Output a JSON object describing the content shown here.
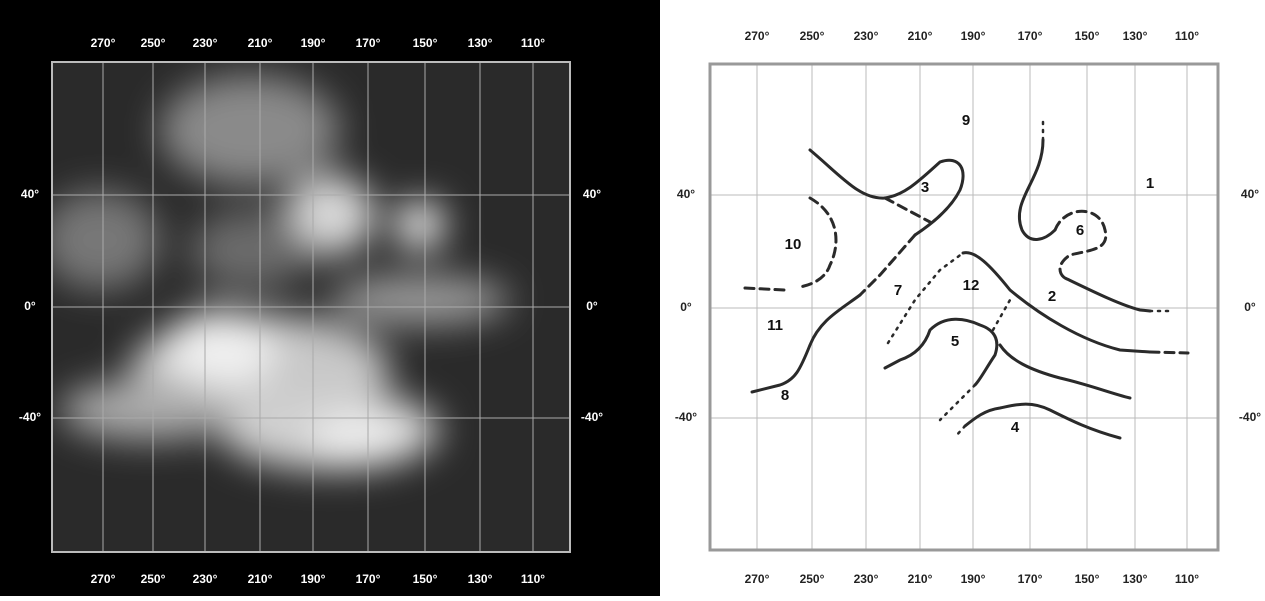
{
  "left_panel": {
    "longitudes_top": [
      "270°",
      "250°",
      "230°",
      "210°",
      "190°",
      "170°",
      "150°",
      "130°",
      "110°"
    ],
    "longitudes_bottom": [
      "270°",
      "250°",
      "230°",
      "210°",
      "190°",
      "170°",
      "150°",
      "130°",
      "110°"
    ],
    "latitudes_left": [
      "40°",
      "0°",
      "-40°"
    ],
    "latitudes_right": [
      "40°",
      "0°",
      "-40°"
    ]
  },
  "right_panel": {
    "longitudes_top": [
      "270°",
      "250°",
      "230°",
      "210°",
      "190°",
      "170°",
      "150°",
      "130°",
      "110°"
    ],
    "longitudes_bottom": [
      "270°",
      "250°",
      "230°",
      "210°",
      "190°",
      "170°",
      "150°",
      "130°",
      "110°"
    ],
    "latitudes_left": [
      "40°",
      "0°",
      "-40°"
    ],
    "latitudes_right": [
      "40°",
      "0°",
      "-40°"
    ],
    "feature_labels": [
      "1",
      "2",
      "3",
      "4",
      "5",
      "6",
      "7",
      "8",
      "9",
      "10",
      "11",
      "12"
    ]
  }
}
